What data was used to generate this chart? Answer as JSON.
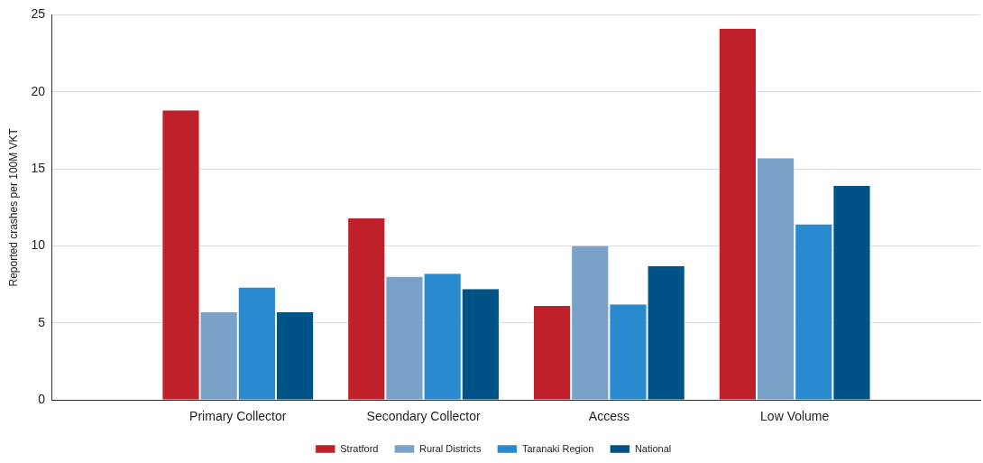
{
  "chart_data": {
    "type": "bar",
    "ylabel": "Reported crashes per 100M VKT",
    "categories": [
      "Primary Collector",
      "Secondary Collector",
      "Access",
      "Low Volume"
    ],
    "series": [
      {
        "name": "Stratford",
        "color": "#c0202a",
        "values": [
          18.8,
          11.8,
          6.1,
          24.1
        ]
      },
      {
        "name": "Rural Districts",
        "color": "#7aa2c8",
        "values": [
          5.7,
          8.0,
          10.0,
          15.7
        ]
      },
      {
        "name": "Taranaki Region",
        "color": "#2a8ad0",
        "values": [
          7.3,
          8.2,
          6.2,
          11.4
        ]
      },
      {
        "name": "National",
        "color": "#005386",
        "values": [
          5.7,
          7.2,
          8.7,
          13.9
        ]
      }
    ],
    "ylim": [
      0,
      25
    ],
    "yticks": [
      0,
      5,
      10,
      15,
      20,
      25
    ],
    "grid": "y",
    "legend": "bottom"
  }
}
